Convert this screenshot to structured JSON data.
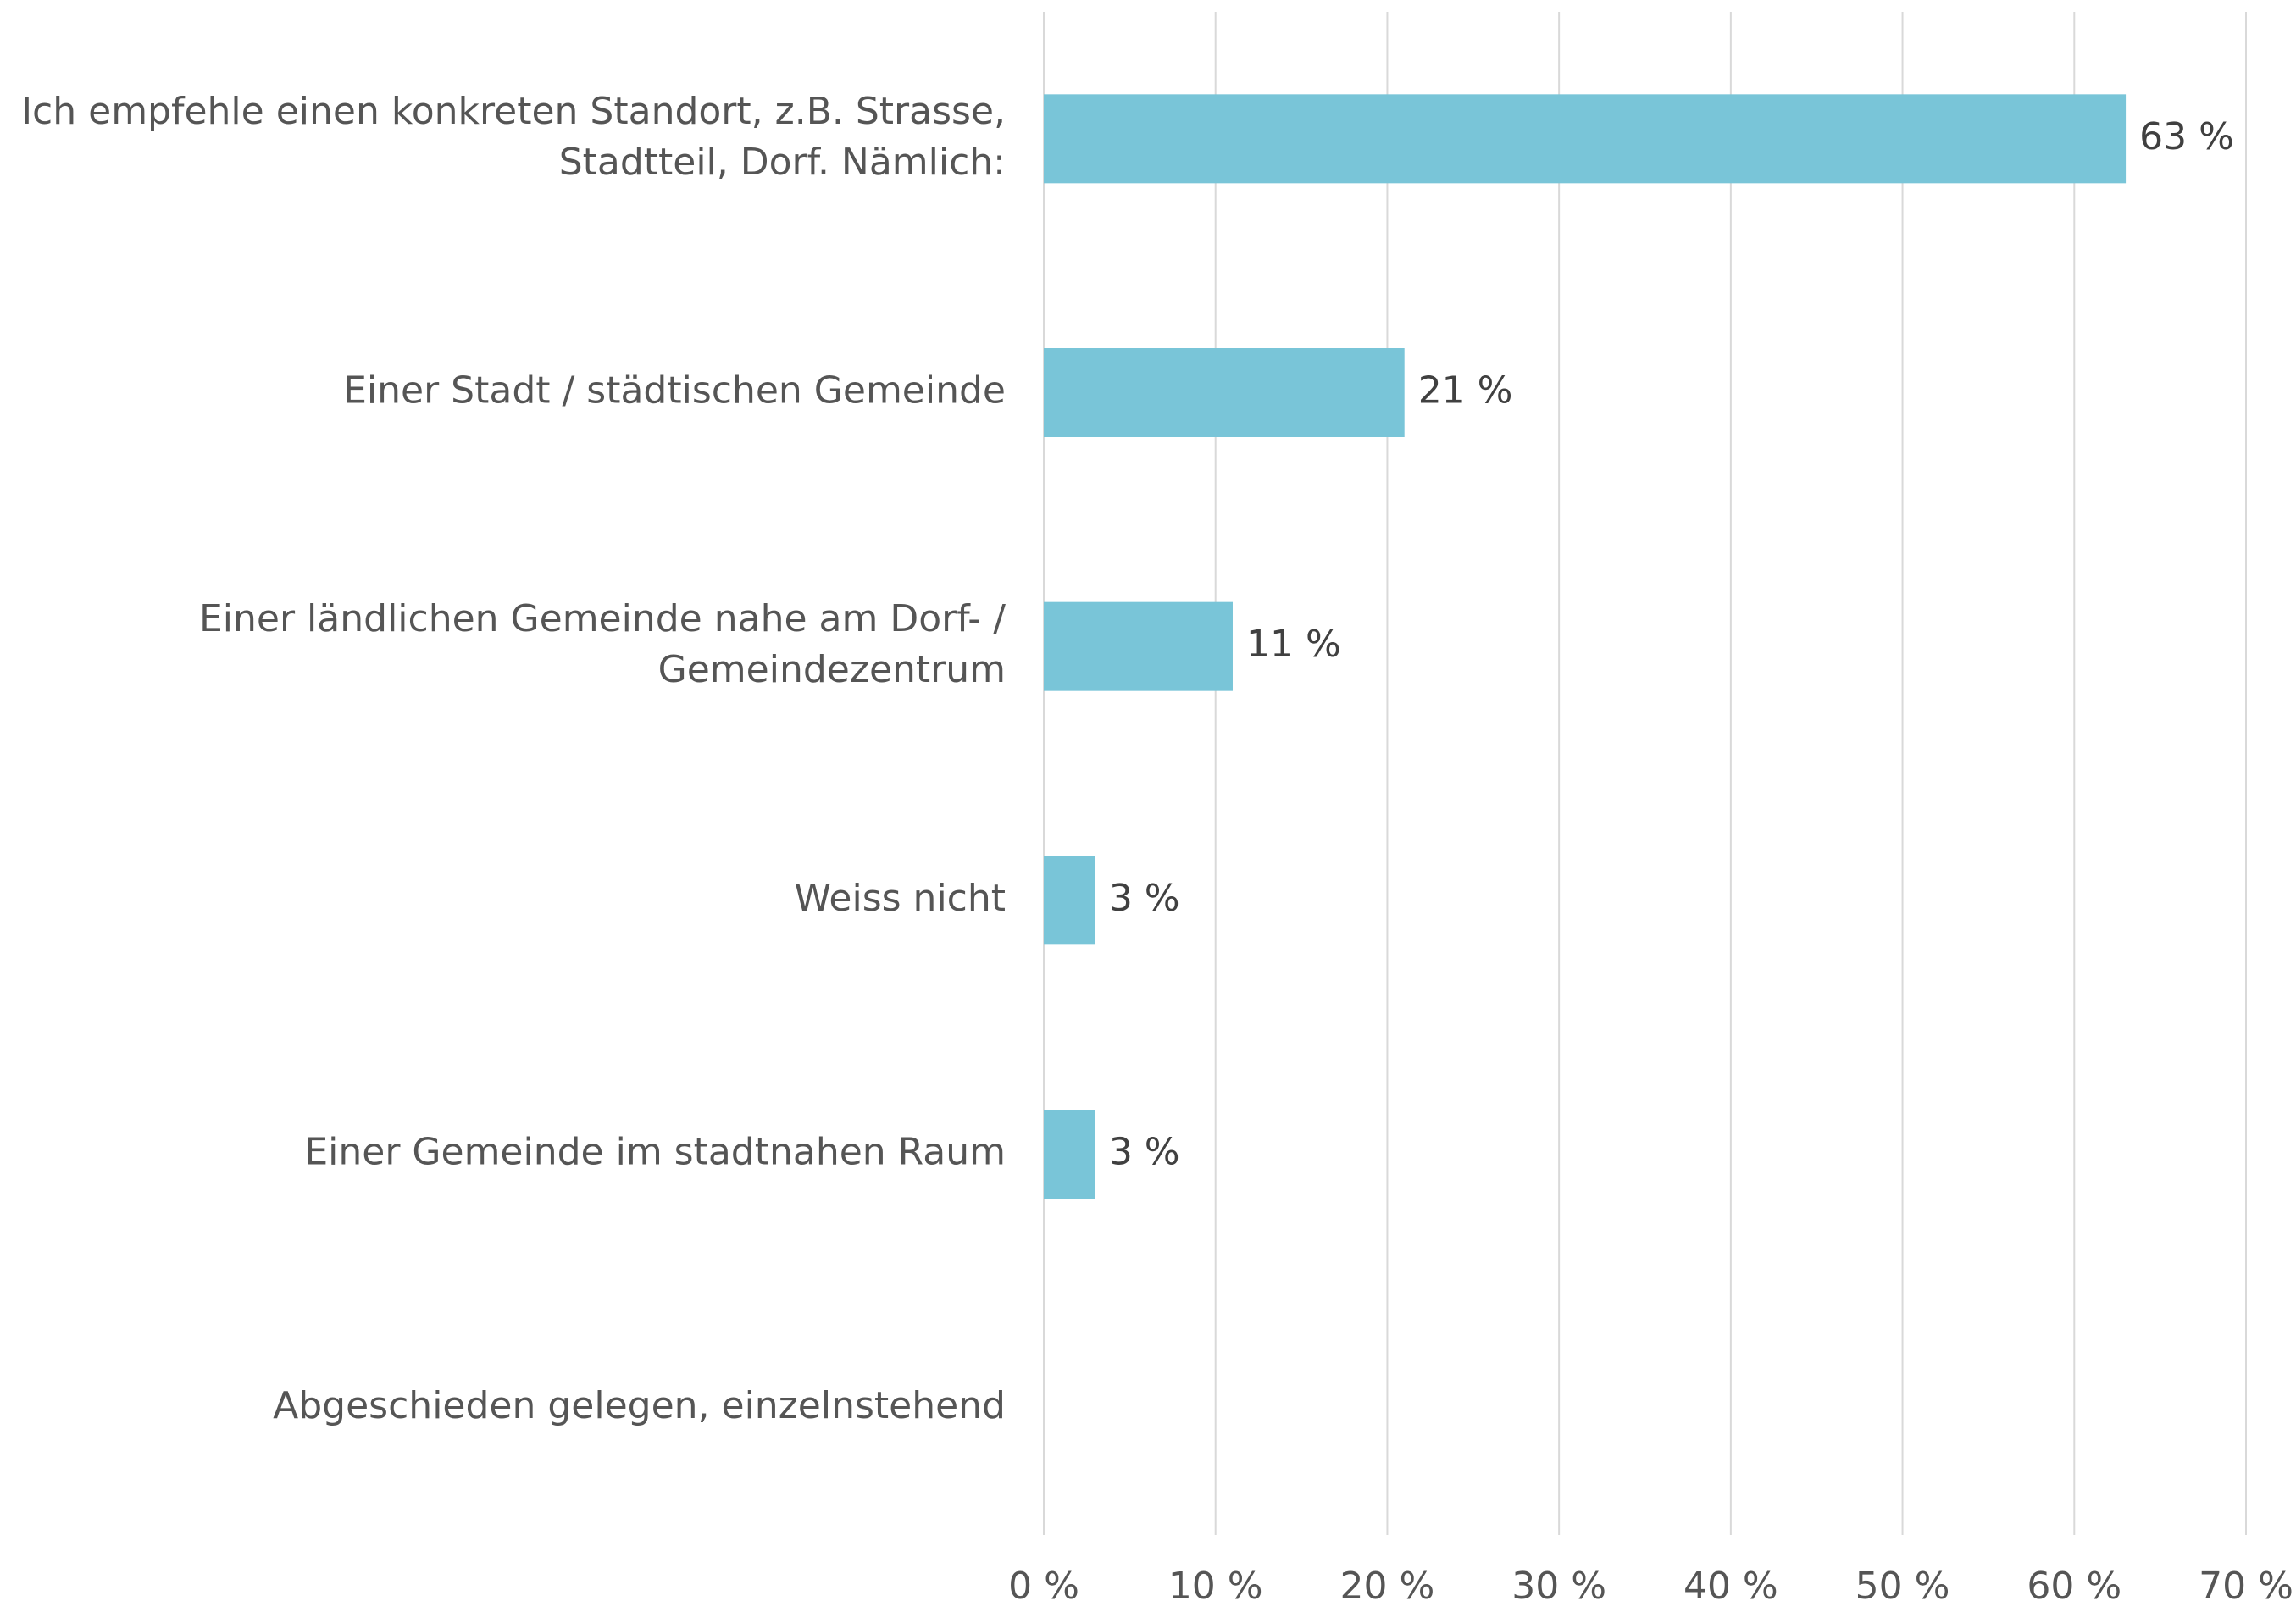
{
  "chart_data": {
    "type": "hbar",
    "categories": [
      "Ich empfehle einen konkreten Standort, z.B. Strasse,\nStadtteil, Dorf. Nämlich:",
      "Einer Stadt / städtischen Gemeinde",
      "Einer ländlichen Gemeinde nahe am Dorf- /\nGemeindezentrum",
      "Weiss nicht",
      "Einer Gemeinde im stadtnahen Raum",
      "Abgeschieden gelegen, einzelnstehend"
    ],
    "values": [
      63,
      21,
      11,
      3,
      3,
      null
    ],
    "value_labels": [
      "63 %",
      "21 %",
      "11 %",
      "3 %",
      "3 %",
      null
    ],
    "color": "#79c5d8",
    "xlim": [
      0,
      70
    ],
    "xticks": [
      {
        "value": 0,
        "label": "0 %"
      },
      {
        "value": 10,
        "label": "10 %"
      },
      {
        "value": 20,
        "label": "20 %"
      },
      {
        "value": 30,
        "label": "30 %"
      },
      {
        "value": 40,
        "label": "40 %"
      },
      {
        "value": 50,
        "label": "50 %"
      },
      {
        "value": 60,
        "label": "60 %"
      },
      {
        "value": 70,
        "label": "70 %"
      }
    ],
    "grid": true
  }
}
